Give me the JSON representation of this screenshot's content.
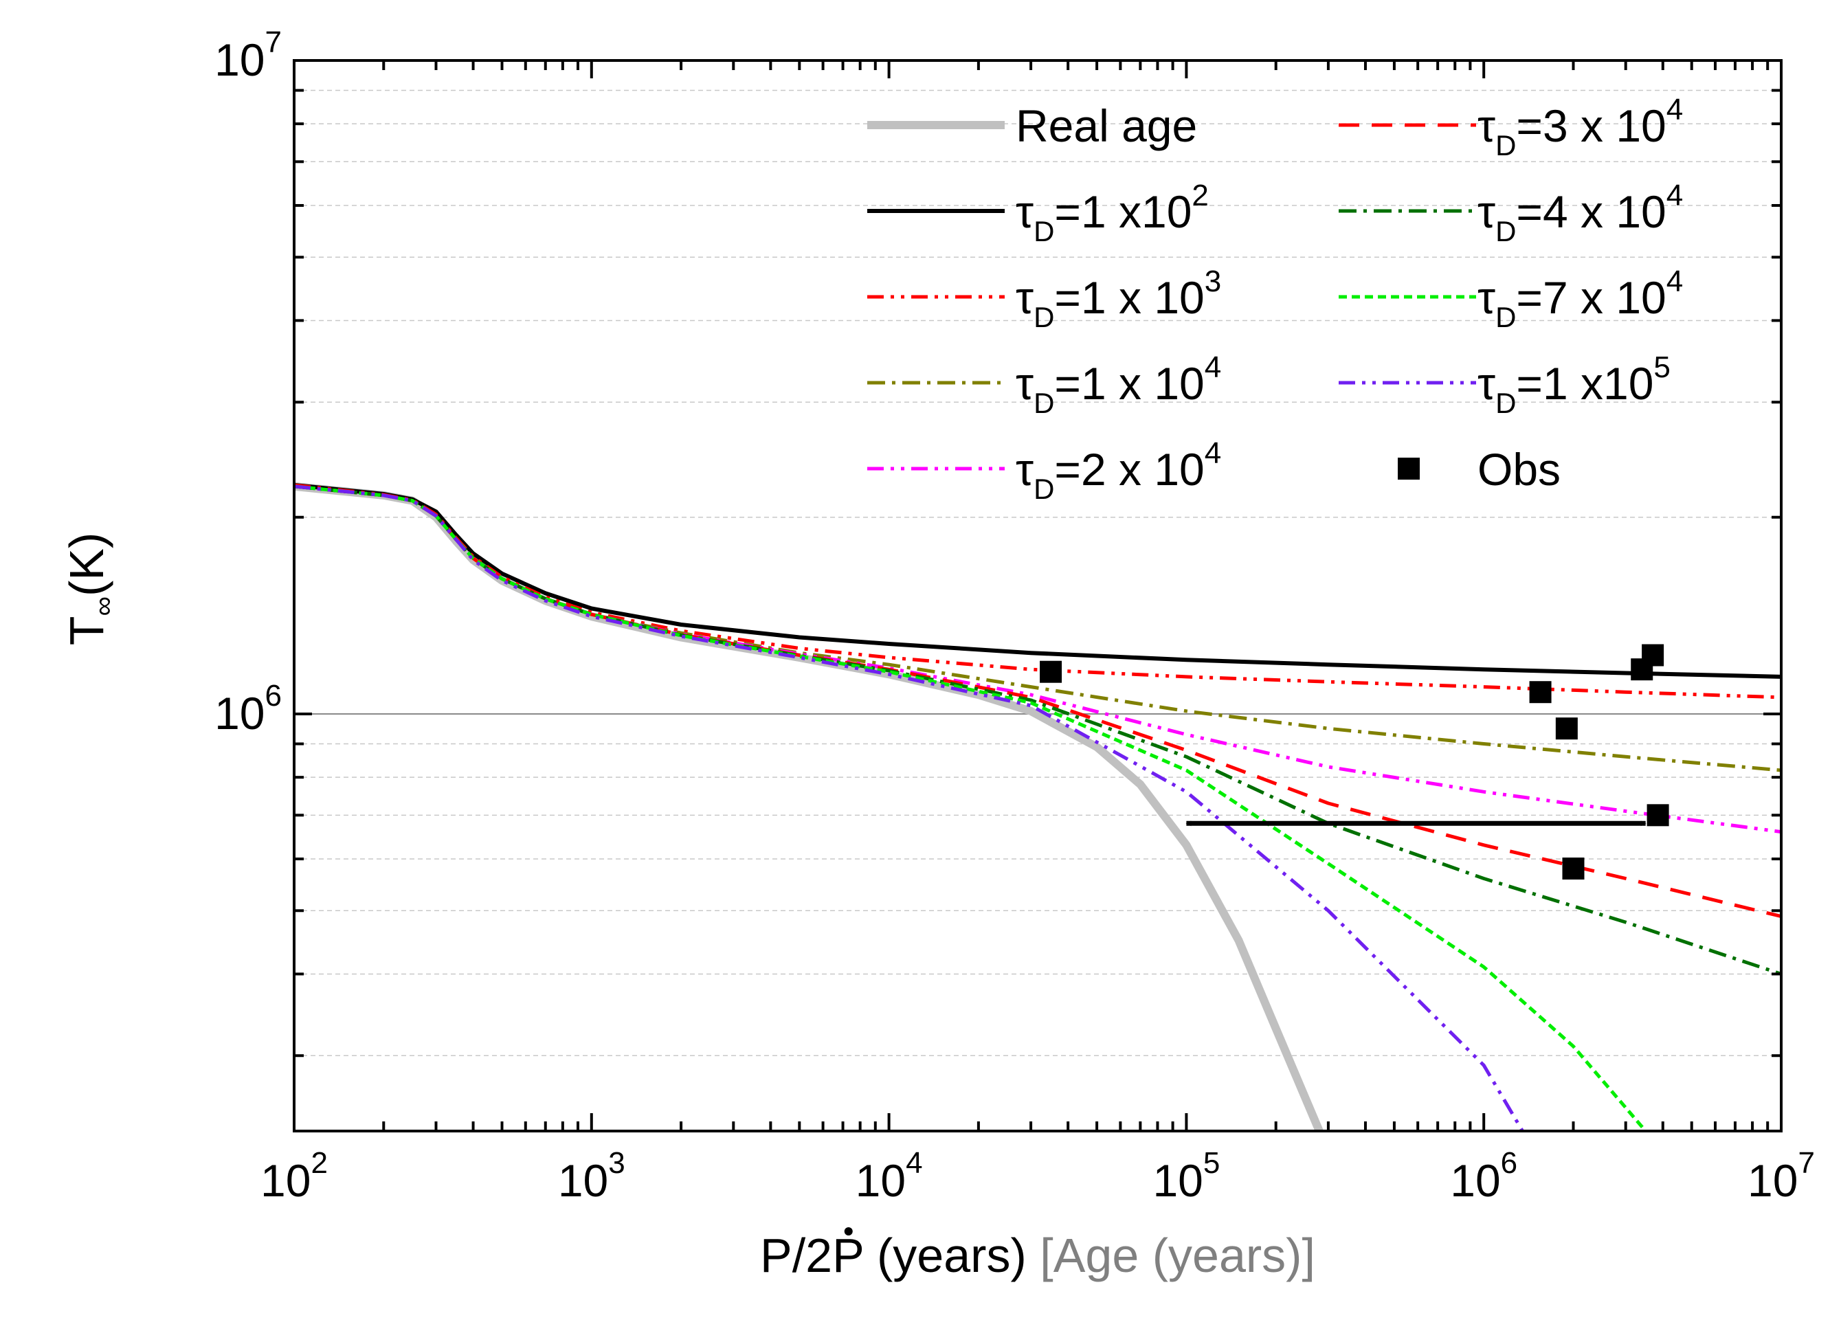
{
  "chart_data": {
    "type": "line",
    "xscale": "log",
    "yscale": "log",
    "xlim": [
      100,
      10000000
    ],
    "ylim": [
      230000,
      10000000
    ],
    "xlabel": {
      "main": "P/2",
      "pdot": "P",
      "main_tail": " (years) ",
      "secondary": "[Age (years)]"
    },
    "ylabel": {
      "main": "T",
      "sub": "∞",
      "tail": "(K)"
    },
    "x_ticks": [
      {
        "value": 100,
        "base": "10",
        "exp": "2"
      },
      {
        "value": 1000,
        "base": "10",
        "exp": "3"
      },
      {
        "value": 10000,
        "base": "10",
        "exp": "4"
      },
      {
        "value": 100000,
        "base": "10",
        "exp": "5"
      },
      {
        "value": 1000000,
        "base": "10",
        "exp": "6"
      },
      {
        "value": 10000000,
        "base": "10",
        "exp": "7"
      }
    ],
    "y_ticks": [
      {
        "value": 1000000,
        "base": "10",
        "exp": "6"
      },
      {
        "value": 10000000,
        "base": "10",
        "exp": "7"
      }
    ],
    "grid": "major solid, minor dashed (y)",
    "series": [
      {
        "name": "Real age",
        "label": {
          "main": "Real age"
        },
        "color": "#c0c0c0",
        "width": 12,
        "dash": "",
        "points": [
          [
            100,
            2230000
          ],
          [
            200,
            2160000
          ],
          [
            250,
            2120000
          ],
          [
            300,
            2000000
          ],
          [
            350,
            1840000
          ],
          [
            400,
            1720000
          ],
          [
            500,
            1600000
          ],
          [
            700,
            1490000
          ],
          [
            1000,
            1410000
          ],
          [
            2000,
            1310000
          ],
          [
            5000,
            1220000
          ],
          [
            10000,
            1150000
          ],
          [
            20000,
            1070000
          ],
          [
            30000,
            1010000
          ],
          [
            50000,
            890000
          ],
          [
            70000,
            780000
          ],
          [
            100000,
            630000
          ],
          [
            150000,
            450000
          ],
          [
            200000,
            330000
          ],
          [
            280000,
            230000
          ]
        ]
      },
      {
        "name": "tauD=1x10^2",
        "label": {
          "tau": "τ",
          "sub": "D",
          "text": "=1 x10",
          "exp": "2"
        },
        "color": "#000000",
        "width": 6,
        "dash": "",
        "points": [
          [
            100,
            2240000
          ],
          [
            200,
            2170000
          ],
          [
            250,
            2130000
          ],
          [
            300,
            2040000
          ],
          [
            350,
            1880000
          ],
          [
            400,
            1760000
          ],
          [
            500,
            1640000
          ],
          [
            700,
            1530000
          ],
          [
            1000,
            1450000
          ],
          [
            2000,
            1370000
          ],
          [
            5000,
            1310000
          ],
          [
            10000,
            1280000
          ],
          [
            30000,
            1240000
          ],
          [
            100000,
            1210000
          ],
          [
            300000,
            1190000
          ],
          [
            1000000,
            1170000
          ],
          [
            3000000,
            1155000
          ],
          [
            10000000,
            1140000
          ]
        ]
      },
      {
        "name": "tauD=1x10^3",
        "label": {
          "tau": "τ",
          "sub": "D",
          "text": "=1 x 10",
          "exp": "3"
        },
        "color": "#ff0000",
        "width": 5,
        "dash": "24,10,5,10,5,10",
        "points": [
          [
            100,
            2240000
          ],
          [
            200,
            2165000
          ],
          [
            250,
            2125000
          ],
          [
            300,
            2020000
          ],
          [
            350,
            1860000
          ],
          [
            400,
            1740000
          ],
          [
            500,
            1620000
          ],
          [
            700,
            1510000
          ],
          [
            1000,
            1430000
          ],
          [
            2000,
            1340000
          ],
          [
            5000,
            1260000
          ],
          [
            10000,
            1220000
          ],
          [
            30000,
            1170000
          ],
          [
            100000,
            1140000
          ],
          [
            300000,
            1120000
          ],
          [
            1000000,
            1100000
          ],
          [
            3000000,
            1080000
          ],
          [
            10000000,
            1060000
          ]
        ]
      },
      {
        "name": "tauD=1x10^4",
        "label": {
          "tau": "τ",
          "sub": "D",
          "text": "=1 x 10",
          "exp": "4"
        },
        "color": "#808000",
        "width": 5,
        "dash": "26,10,5,10",
        "points": [
          [
            100,
            2230000
          ],
          [
            200,
            2160000
          ],
          [
            250,
            2120000
          ],
          [
            300,
            2010000
          ],
          [
            350,
            1850000
          ],
          [
            400,
            1730000
          ],
          [
            500,
            1610000
          ],
          [
            700,
            1500000
          ],
          [
            1000,
            1420000
          ],
          [
            2000,
            1330000
          ],
          [
            5000,
            1240000
          ],
          [
            10000,
            1190000
          ],
          [
            30000,
            1100000
          ],
          [
            100000,
            1010000
          ],
          [
            300000,
            950000
          ],
          [
            1000000,
            900000
          ],
          [
            3000000,
            860000
          ],
          [
            10000000,
            820000
          ]
        ]
      },
      {
        "name": "tauD=2x10^4",
        "label": {
          "tau": "τ",
          "sub": "D",
          "text": "=2 x 10",
          "exp": "4"
        },
        "color": "#ff00ff",
        "width": 5,
        "dash": "24,10,5,10,5,10",
        "points": [
          [
            100,
            2230000
          ],
          [
            200,
            2160000
          ],
          [
            250,
            2120000
          ],
          [
            300,
            2010000
          ],
          [
            350,
            1850000
          ],
          [
            400,
            1730000
          ],
          [
            500,
            1610000
          ],
          [
            700,
            1500000
          ],
          [
            1000,
            1420000
          ],
          [
            2000,
            1325000
          ],
          [
            5000,
            1235000
          ],
          [
            10000,
            1175000
          ],
          [
            30000,
            1070000
          ],
          [
            100000,
            930000
          ],
          [
            300000,
            830000
          ],
          [
            1000000,
            760000
          ],
          [
            3000000,
            710000
          ],
          [
            10000000,
            660000
          ]
        ]
      },
      {
        "name": "tauD=3x10^4",
        "label": {
          "tau": "τ",
          "sub": "D",
          "text": "=3 x 10",
          "exp": "4"
        },
        "color": "#ff0000",
        "width": 5,
        "dash": "30,18",
        "points": [
          [
            100,
            2230000
          ],
          [
            200,
            2160000
          ],
          [
            250,
            2120000
          ],
          [
            300,
            2010000
          ],
          [
            350,
            1850000
          ],
          [
            400,
            1730000
          ],
          [
            500,
            1610000
          ],
          [
            700,
            1500000
          ],
          [
            1000,
            1420000
          ],
          [
            2000,
            1322000
          ],
          [
            5000,
            1230000
          ],
          [
            10000,
            1170000
          ],
          [
            30000,
            1060000
          ],
          [
            100000,
            880000
          ],
          [
            300000,
            730000
          ],
          [
            1000000,
            630000
          ],
          [
            3000000,
            560000
          ],
          [
            10000000,
            490000
          ]
        ]
      },
      {
        "name": "tauD=4x10^4",
        "label": {
          "tau": "τ",
          "sub": "D",
          "text": "=4 x 10",
          "exp": "4"
        },
        "color": "#007000",
        "width": 5,
        "dash": "26,10,5,10",
        "points": [
          [
            100,
            2230000
          ],
          [
            200,
            2160000
          ],
          [
            250,
            2120000
          ],
          [
            300,
            2010000
          ],
          [
            350,
            1850000
          ],
          [
            400,
            1730000
          ],
          [
            500,
            1610000
          ],
          [
            700,
            1500000
          ],
          [
            1000,
            1420000
          ],
          [
            2000,
            1320000
          ],
          [
            5000,
            1228000
          ],
          [
            10000,
            1165000
          ],
          [
            30000,
            1050000
          ],
          [
            100000,
            860000
          ],
          [
            300000,
            680000
          ],
          [
            1000000,
            560000
          ],
          [
            3000000,
            480000
          ],
          [
            10000000,
            400000
          ]
        ]
      },
      {
        "name": "tauD=7x10^4",
        "label": {
          "tau": "τ",
          "sub": "D",
          "text": "=7 x 10",
          "exp": "4"
        },
        "color": "#00ee00",
        "width": 5,
        "dash": "12,7",
        "points": [
          [
            100,
            2230000
          ],
          [
            200,
            2160000
          ],
          [
            250,
            2120000
          ],
          [
            300,
            2010000
          ],
          [
            350,
            1850000
          ],
          [
            400,
            1730000
          ],
          [
            500,
            1610000
          ],
          [
            700,
            1500000
          ],
          [
            1000,
            1420000
          ],
          [
            2000,
            1318000
          ],
          [
            5000,
            1225000
          ],
          [
            10000,
            1160000
          ],
          [
            30000,
            1040000
          ],
          [
            100000,
            820000
          ],
          [
            300000,
            590000
          ],
          [
            1000000,
            410000
          ],
          [
            2000000,
            310000
          ],
          [
            3500000,
            230000
          ]
        ]
      },
      {
        "name": "tauD=1x10^5",
        "label": {
          "tau": "τ",
          "sub": "D",
          "text": "=1 x10",
          "exp": "5"
        },
        "color": "#7020f0",
        "width": 5,
        "dash": "24,10,5,10,5,10",
        "points": [
          [
            100,
            2230000
          ],
          [
            200,
            2160000
          ],
          [
            250,
            2120000
          ],
          [
            300,
            2010000
          ],
          [
            350,
            1850000
          ],
          [
            400,
            1720000
          ],
          [
            500,
            1600000
          ],
          [
            700,
            1490000
          ],
          [
            1000,
            1410000
          ],
          [
            2000,
            1315000
          ],
          [
            5000,
            1220000
          ],
          [
            10000,
            1150000
          ],
          [
            30000,
            1030000
          ],
          [
            100000,
            760000
          ],
          [
            300000,
            500000
          ],
          [
            1000000,
            290000
          ],
          [
            1350000,
            230000
          ]
        ]
      }
    ],
    "observations": {
      "name": "Obs",
      "label": {
        "main": "Obs"
      },
      "color": "#000000",
      "points": [
        [
          35000,
          1160000
        ],
        [
          1550000,
          1080000
        ],
        [
          1900000,
          950000
        ],
        [
          3400000,
          1170000
        ],
        [
          3700000,
          1230000
        ],
        [
          3850000,
          700000
        ],
        [
          2000000,
          580000
        ]
      ]
    },
    "annotation": {
      "type": "double-arrow",
      "from": [
        100000,
        680000
      ],
      "to": [
        3500000,
        680000
      ],
      "color": "#000000"
    },
    "legend": {
      "position": "top-right",
      "columns": [
        [
          "Real age",
          "tauD=1x10^2",
          "tauD=1x10^3",
          "tauD=1x10^4",
          "tauD=2x10^4"
        ],
        [
          "tauD=3x10^4",
          "tauD=4x10^4",
          "tauD=7x10^4",
          "tauD=1x10^5",
          "Obs"
        ]
      ]
    }
  }
}
